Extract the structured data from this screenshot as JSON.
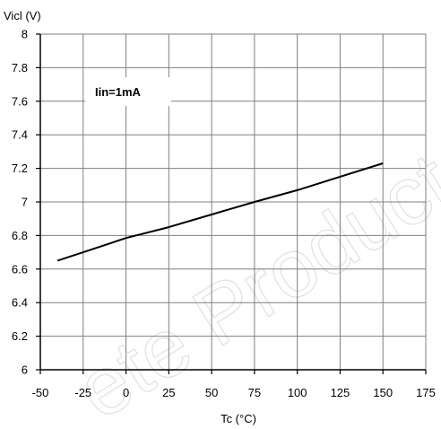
{
  "chart_data": {
    "type": "line",
    "title": "",
    "xlabel": "Tc (°C)",
    "ylabel": "Vicl (V)",
    "xlim": [
      -50,
      175
    ],
    "ylim": [
      6,
      8
    ],
    "x_ticks": [
      "-50",
      "-25",
      "0",
      "25",
      "50",
      "75",
      "100",
      "125",
      "150",
      "175"
    ],
    "y_ticks": [
      "6",
      "6.2",
      "6.4",
      "6.6",
      "6.8",
      "7",
      "7.2",
      "7.4",
      "7.6",
      "7.8",
      "8"
    ],
    "grid": true,
    "legend": "none",
    "annotation": "Iin=1mA",
    "watermark": "ete Product(s)",
    "series": [
      {
        "x": [
          -40,
          -25,
          0,
          25,
          50,
          75,
          100,
          125,
          150
        ],
        "y": [
          6.65,
          6.7,
          6.785,
          6.85,
          6.925,
          7.0,
          7.07,
          7.15,
          7.23
        ],
        "color": "#000000"
      }
    ]
  }
}
